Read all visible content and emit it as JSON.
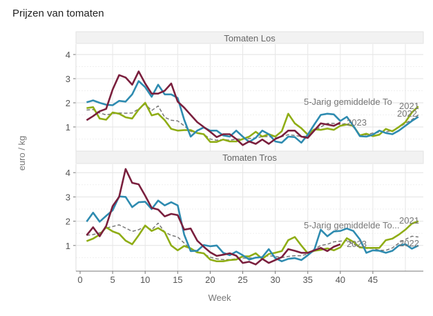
{
  "chart_data": {
    "type": "line",
    "title": "Prijzen van tomaten",
    "xlabel": "Week",
    "ylabel": "euro / kg",
    "xlim": [
      0,
      52
    ],
    "ylim": [
      0,
      4.4
    ],
    "x_ticks": [
      "0",
      "5",
      "10",
      "15",
      "20",
      "25",
      "30",
      "35",
      "40",
      "45"
    ],
    "y_ticks": [
      "1",
      "2",
      "3",
      "4"
    ],
    "grid": true,
    "colors": {
      "2021": "#8fad15",
      "2022": "#2e8bb0",
      "2023": "#7a1f3d",
      "avg": "#777777"
    },
    "panels": [
      {
        "name": "Tomaten Los",
        "series": [
          {
            "name": "2021",
            "key": "2021",
            "values": [
              1.78,
              1.82,
              1.35,
              1.3,
              1.6,
              1.55,
              1.4,
              1.35,
              1.72,
              2.0,
              1.48,
              1.55,
              1.28,
              0.92,
              0.85,
              0.87,
              0.87,
              0.75,
              0.7,
              0.38,
              0.38,
              0.48,
              0.4,
              0.4,
              0.5,
              0.6,
              0.8,
              0.6,
              0.7,
              0.6,
              0.82,
              1.55,
              1.15,
              0.95,
              0.68,
              0.9,
              0.88,
              0.93,
              0.88,
              1.05,
              1.1,
              1.05,
              0.65,
              0.72,
              0.62,
              0.68,
              0.92,
              0.82,
              1.0,
              1.2,
              1.6,
              1.85
            ]
          },
          {
            "name": "2022",
            "key": "2022",
            "values": [
              2.02,
              2.1,
              2.0,
              1.92,
              1.9,
              2.08,
              2.05,
              2.35,
              2.9,
              2.65,
              2.25,
              2.75,
              2.35,
              2.35,
              2.2,
              1.3,
              0.6,
              0.85,
              0.98,
              0.85,
              0.85,
              0.65,
              0.6,
              0.85,
              0.6,
              0.38,
              0.55,
              0.85,
              0.7,
              0.4,
              0.35,
              0.6,
              0.58,
              0.35,
              0.68,
              1.1,
              1.5,
              1.55,
              1.52,
              1.25,
              1.42,
              1.05,
              0.62,
              0.6,
              0.68,
              0.85,
              0.75,
              0.7,
              0.85,
              1.05,
              1.25,
              1.42
            ]
          },
          {
            "name": "2023",
            "key": "2023",
            "values": [
              1.28,
              1.45,
              1.65,
              1.75,
              2.55,
              3.15,
              3.05,
              2.75,
              3.3,
              2.8,
              2.38,
              2.38,
              2.5,
              2.8,
              2.05,
              1.8,
              1.5,
              1.2,
              1.0,
              0.8,
              0.58,
              0.7,
              0.7,
              0.5,
              0.25,
              0.4,
              0.3,
              0.48,
              0.3,
              0.5,
              0.62,
              0.85,
              0.85,
              0.6,
              0.55,
              0.85,
              1.15,
              1.1,
              1.05,
              1.18
            ]
          },
          {
            "name": "5-Jarig gemiddelde To",
            "key": "avg",
            "values": [
              1.7,
              1.72,
              1.58,
              1.5,
              1.55,
              1.58,
              1.57,
              1.58,
              1.75,
              1.95,
              1.68,
              1.87,
              1.4,
              1.28,
              1.25,
              1.05,
              0.82,
              0.75,
              0.7,
              0.5,
              0.45,
              0.48,
              0.45,
              0.5,
              0.5,
              0.52,
              0.55,
              0.6,
              0.6,
              0.55,
              0.6,
              0.68,
              0.65,
              0.6,
              0.62,
              0.85,
              1.0,
              1.15,
              1.15,
              1.1,
              1.15,
              1.0,
              0.65,
              0.68,
              0.75,
              0.78,
              0.8,
              0.85,
              0.98,
              1.15,
              1.3,
              1.5
            ]
          }
        ]
      },
      {
        "name": "Tomaten Tros",
        "series": [
          {
            "name": "2021",
            "key": "2021",
            "values": [
              1.18,
              1.28,
              1.45,
              1.75,
              1.58,
              1.48,
              1.2,
              1.05,
              1.42,
              1.82,
              1.6,
              1.72,
              1.55,
              1.0,
              0.8,
              0.98,
              0.88,
              0.72,
              0.68,
              0.42,
              0.35,
              0.35,
              0.4,
              0.42,
              0.55,
              0.55,
              0.68,
              0.45,
              0.65,
              0.7,
              0.77,
              1.22,
              1.35,
              1.0,
              0.68,
              0.78,
              0.82,
              0.88,
              0.8,
              0.92,
              1.3,
              1.15,
              0.92,
              0.9,
              0.9,
              0.9,
              1.22,
              1.28,
              1.45,
              1.65,
              1.9,
              2.0
            ]
          },
          {
            "name": "2022",
            "key": "2022",
            "values": [
              1.98,
              2.35,
              1.98,
              2.22,
              2.45,
              3.02,
              3.0,
              2.58,
              2.78,
              2.8,
              2.5,
              2.85,
              2.65,
              2.78,
              2.65,
              1.45,
              0.77,
              0.78,
              1.02,
              0.97,
              1.0,
              0.7,
              0.6,
              0.75,
              0.6,
              0.42,
              0.5,
              0.52,
              0.85,
              0.48,
              0.35,
              0.45,
              0.48,
              0.4,
              0.6,
              0.82,
              1.65,
              1.38,
              1.58,
              1.6,
              1.7,
              1.6,
              1.25,
              0.7,
              0.8,
              0.78,
              0.7,
              0.78,
              1.0,
              1.05,
              0.87,
              1.0
            ]
          },
          {
            "name": "2023",
            "key": "2023",
            "values": [
              1.42,
              1.75,
              1.38,
              1.8,
              2.62,
              3.0,
              4.15,
              3.58,
              3.52,
              3.05,
              2.55,
              2.48,
              2.2,
              2.3,
              2.25,
              1.65,
              1.7,
              1.2,
              0.95,
              0.72,
              0.57,
              0.62,
              0.68,
              0.58,
              0.28,
              0.33,
              0.22,
              0.45,
              0.28,
              0.4,
              0.52,
              0.85,
              0.78,
              0.7,
              0.7,
              0.8,
              0.9,
              0.77,
              0.95,
              1.05
            ]
          },
          {
            "name": "5-Jarig gemiddelde To...",
            "key": "avg",
            "values": [
              1.42,
              1.45,
              1.52,
              1.72,
              1.78,
              1.85,
              1.72,
              1.58,
              1.65,
              1.78,
              1.65,
              1.92,
              1.55,
              1.42,
              1.35,
              1.1,
              0.85,
              0.78,
              0.65,
              0.52,
              0.45,
              0.42,
              0.42,
              0.45,
              0.48,
              0.48,
              0.5,
              0.52,
              0.58,
              0.55,
              0.5,
              0.55,
              0.58,
              0.58,
              0.65,
              0.85,
              1.0,
              1.05,
              1.15,
              1.18,
              1.2,
              1.05,
              0.95,
              0.88,
              0.88,
              0.8,
              0.8,
              0.9,
              1.1,
              1.25,
              1.38,
              1.35
            ]
          }
        ]
      }
    ]
  }
}
